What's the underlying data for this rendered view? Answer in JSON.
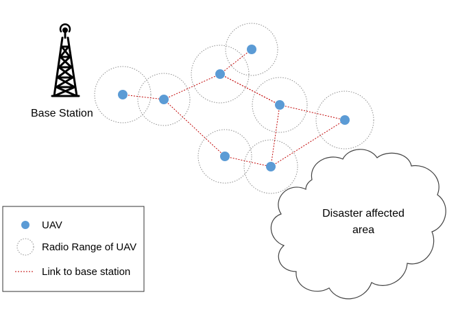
{
  "base_station": {
    "label": "Base Station"
  },
  "cloud": {
    "line1": "Disaster affected",
    "line2": "area"
  },
  "legend": {
    "items": [
      {
        "label": "UAV"
      },
      {
        "label": "Radio Range of UAV"
      },
      {
        "label": "Link to base station"
      }
    ]
  },
  "colors": {
    "uav": "#5b9bd5",
    "link": "#c00000",
    "range": "#8c8c8c",
    "text": "#000000"
  },
  "nodes": [
    {
      "id": "u1"
    },
    {
      "id": "u2"
    },
    {
      "id": "u3"
    },
    {
      "id": "u4"
    },
    {
      "id": "u5"
    },
    {
      "id": "u6"
    },
    {
      "id": "u7"
    },
    {
      "id": "u8"
    },
    {
      "id": "u9"
    }
  ],
  "links": [
    [
      "u1",
      "u2"
    ],
    [
      "u2",
      "u3"
    ],
    [
      "u3",
      "u4"
    ],
    [
      "u3",
      "u5"
    ],
    [
      "u5",
      "u6"
    ],
    [
      "u2",
      "u7"
    ],
    [
      "u7",
      "u8"
    ],
    [
      "u8",
      "u6"
    ],
    [
      "u3",
      "u9"
    ],
    [
      "u9",
      "u8"
    ]
  ]
}
